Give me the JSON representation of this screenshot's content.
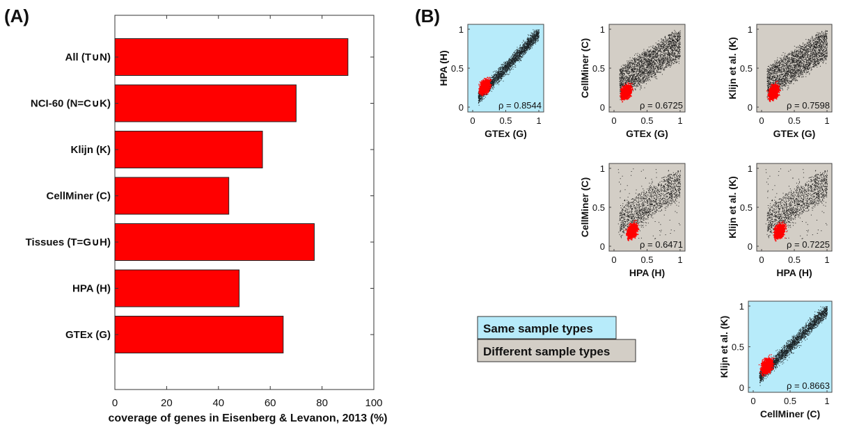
{
  "panel_a_label": "(A)",
  "panel_b_label": "(B)",
  "colors": {
    "bar": "#ff0000",
    "same_bg": "#b7ebfa",
    "diff_bg": "#d3cec6",
    "red_points": "#ff0000",
    "black_points": "#000000"
  },
  "legend": {
    "same_label": "Same sample types",
    "diff_label": "Different sample types"
  },
  "chart_data": [
    {
      "type": "bar",
      "orientation": "horizontal",
      "categories": [
        "All (T∪N)",
        "NCI-60 (N=C∪K)",
        "Klijn (K)",
        "CellMiner (C)",
        "Tissues (T=G∪H)",
        "HPA (H)",
        "GTEx (G)"
      ],
      "values": [
        90,
        70,
        57,
        44,
        77,
        48,
        65
      ],
      "xlabel": "coverage of genes in Eisenberg & Levanon, 2013 (%)",
      "xlim": [
        0,
        100
      ],
      "xticks": [
        0,
        20,
        40,
        60,
        80,
        100
      ],
      "grid": false
    },
    {
      "type": "scatter",
      "panels": [
        {
          "id": "gtex-hpa",
          "xlabel": "GTEx (G)",
          "ylabel": "HPA (H)",
          "rho": "ρ = 0.8544",
          "sample_types": "same",
          "xlim": [
            0,
            1
          ],
          "ylim": [
            0,
            1
          ],
          "xticks": [
            "0",
            "0.5",
            "1"
          ],
          "yticks": [
            "0",
            "0.5",
            "1"
          ]
        },
        {
          "id": "gtex-cellminer",
          "xlabel": "GTEx (G)",
          "ylabel": "CellMiner (C)",
          "rho": "ρ = 0.6725",
          "sample_types": "different",
          "xlim": [
            0,
            1
          ],
          "ylim": [
            0,
            1
          ],
          "xticks": [
            "0",
            "0.5",
            "1"
          ],
          "yticks": [
            "0",
            "0.5",
            "1"
          ]
        },
        {
          "id": "gtex-klijn",
          "xlabel": "GTEx (G)",
          "ylabel": "Klijn et al. (K)",
          "rho": "ρ = 0.7598",
          "sample_types": "different",
          "xlim": [
            0,
            1
          ],
          "ylim": [
            0,
            1
          ],
          "xticks": [
            "0",
            "0.5",
            "1"
          ],
          "yticks": [
            "0",
            "0.5",
            "1"
          ]
        },
        {
          "id": "hpa-cellminer",
          "xlabel": "HPA (H)",
          "ylabel": "CellMiner (C)",
          "rho": "ρ = 0.6471",
          "sample_types": "different",
          "xlim": [
            0,
            1
          ],
          "ylim": [
            0,
            1
          ],
          "xticks": [
            "0",
            "0.5",
            "1"
          ],
          "yticks": [
            "0",
            "0.5",
            "1"
          ]
        },
        {
          "id": "hpa-klijn",
          "xlabel": "HPA (H)",
          "ylabel": "Klijn et al. (K)",
          "rho": "ρ = 0.7225",
          "sample_types": "different",
          "xlim": [
            0,
            1
          ],
          "ylim": [
            0,
            1
          ],
          "xticks": [
            "0",
            "0.5",
            "1"
          ],
          "yticks": [
            "0",
            "0.5",
            "1"
          ]
        },
        {
          "id": "cellminer-klijn",
          "xlabel": "CellMiner (C)",
          "ylabel": "Klijn et al. (K)",
          "rho": "ρ = 0.8663",
          "sample_types": "same",
          "xlim": [
            0,
            1
          ],
          "ylim": [
            0,
            1
          ],
          "xticks": [
            "0",
            "0.5",
            "1"
          ],
          "yticks": [
            "0",
            "0.5",
            "1"
          ]
        }
      ]
    }
  ]
}
